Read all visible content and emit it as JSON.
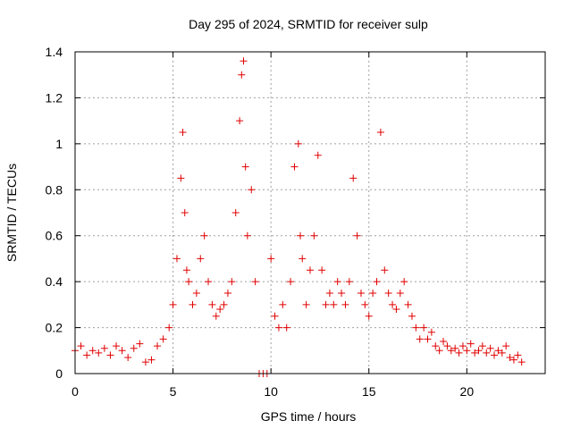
{
  "chart_data": {
    "type": "scatter",
    "title": "Day 295 of 2024, SRMTID for receiver sulp",
    "xlabel": "GPS time / hours",
    "ylabel": "SRMTID / TECUs",
    "xlim": [
      0,
      24
    ],
    "ylim": [
      0,
      1.4
    ],
    "x_ticks": [
      "0",
      "5",
      "10",
      "15",
      "20"
    ],
    "y_ticks": [
      "0",
      "0.2",
      "0.4",
      "0.6",
      "0.8",
      "1",
      "1.2",
      "1.4"
    ],
    "grid": true,
    "marker": "+",
    "marker_color": "#e00000",
    "series": [
      {
        "name": "SRMTID",
        "x": [
          0.0,
          0.3,
          0.6,
          0.9,
          1.2,
          1.5,
          1.8,
          2.1,
          2.4,
          2.7,
          3.0,
          3.3,
          3.6,
          3.9,
          4.2,
          4.5,
          4.8,
          5.0,
          5.2,
          5.4,
          5.5,
          5.6,
          5.7,
          5.8,
          6.0,
          6.2,
          6.4,
          6.6,
          6.8,
          7.0,
          7.2,
          7.4,
          7.6,
          7.8,
          8.0,
          8.2,
          8.4,
          8.5,
          8.6,
          8.7,
          8.8,
          9.0,
          9.2,
          9.4,
          9.6,
          9.8,
          10.0,
          10.2,
          10.4,
          10.6,
          10.8,
          11.0,
          11.2,
          11.4,
          11.5,
          11.6,
          11.8,
          12.0,
          12.2,
          12.4,
          12.6,
          12.8,
          13.0,
          13.2,
          13.4,
          13.6,
          13.8,
          14.0,
          14.2,
          14.4,
          14.6,
          14.8,
          15.0,
          15.2,
          15.4,
          15.6,
          15.8,
          16.0,
          16.2,
          16.4,
          16.6,
          16.8,
          17.0,
          17.2,
          17.4,
          17.6,
          17.8,
          18.0,
          18.2,
          18.4,
          18.6,
          18.8,
          19.0,
          19.2,
          19.4,
          19.6,
          19.8,
          20.0,
          20.2,
          20.4,
          20.6,
          20.8,
          21.0,
          21.2,
          21.4,
          21.6,
          21.8,
          22.0,
          22.2,
          22.4,
          22.6,
          22.8
        ],
        "y": [
          0.1,
          0.12,
          0.08,
          0.1,
          0.09,
          0.11,
          0.08,
          0.12,
          0.1,
          0.07,
          0.11,
          0.13,
          0.05,
          0.06,
          0.12,
          0.15,
          0.2,
          0.3,
          0.5,
          0.85,
          1.05,
          0.7,
          0.45,
          0.4,
          0.3,
          0.35,
          0.5,
          0.6,
          0.4,
          0.3,
          0.25,
          0.28,
          0.3,
          0.35,
          0.4,
          0.7,
          1.1,
          1.3,
          1.36,
          0.9,
          0.6,
          0.8,
          0.4,
          0.0,
          0.0,
          0.0,
          0.5,
          0.25,
          0.2,
          0.3,
          0.2,
          0.4,
          0.9,
          1.0,
          0.6,
          0.5,
          0.3,
          0.45,
          0.6,
          0.95,
          0.45,
          0.3,
          0.35,
          0.3,
          0.4,
          0.35,
          0.3,
          0.4,
          0.85,
          0.6,
          0.35,
          0.3,
          0.25,
          0.35,
          0.4,
          1.05,
          0.45,
          0.35,
          0.3,
          0.28,
          0.35,
          0.4,
          0.3,
          0.25,
          0.2,
          0.15,
          0.2,
          0.15,
          0.18,
          0.12,
          0.1,
          0.14,
          0.12,
          0.1,
          0.11,
          0.09,
          0.12,
          0.1,
          0.13,
          0.09,
          0.1,
          0.12,
          0.09,
          0.11,
          0.08,
          0.1,
          0.09,
          0.12,
          0.07,
          0.06,
          0.08,
          0.05
        ]
      }
    ]
  }
}
